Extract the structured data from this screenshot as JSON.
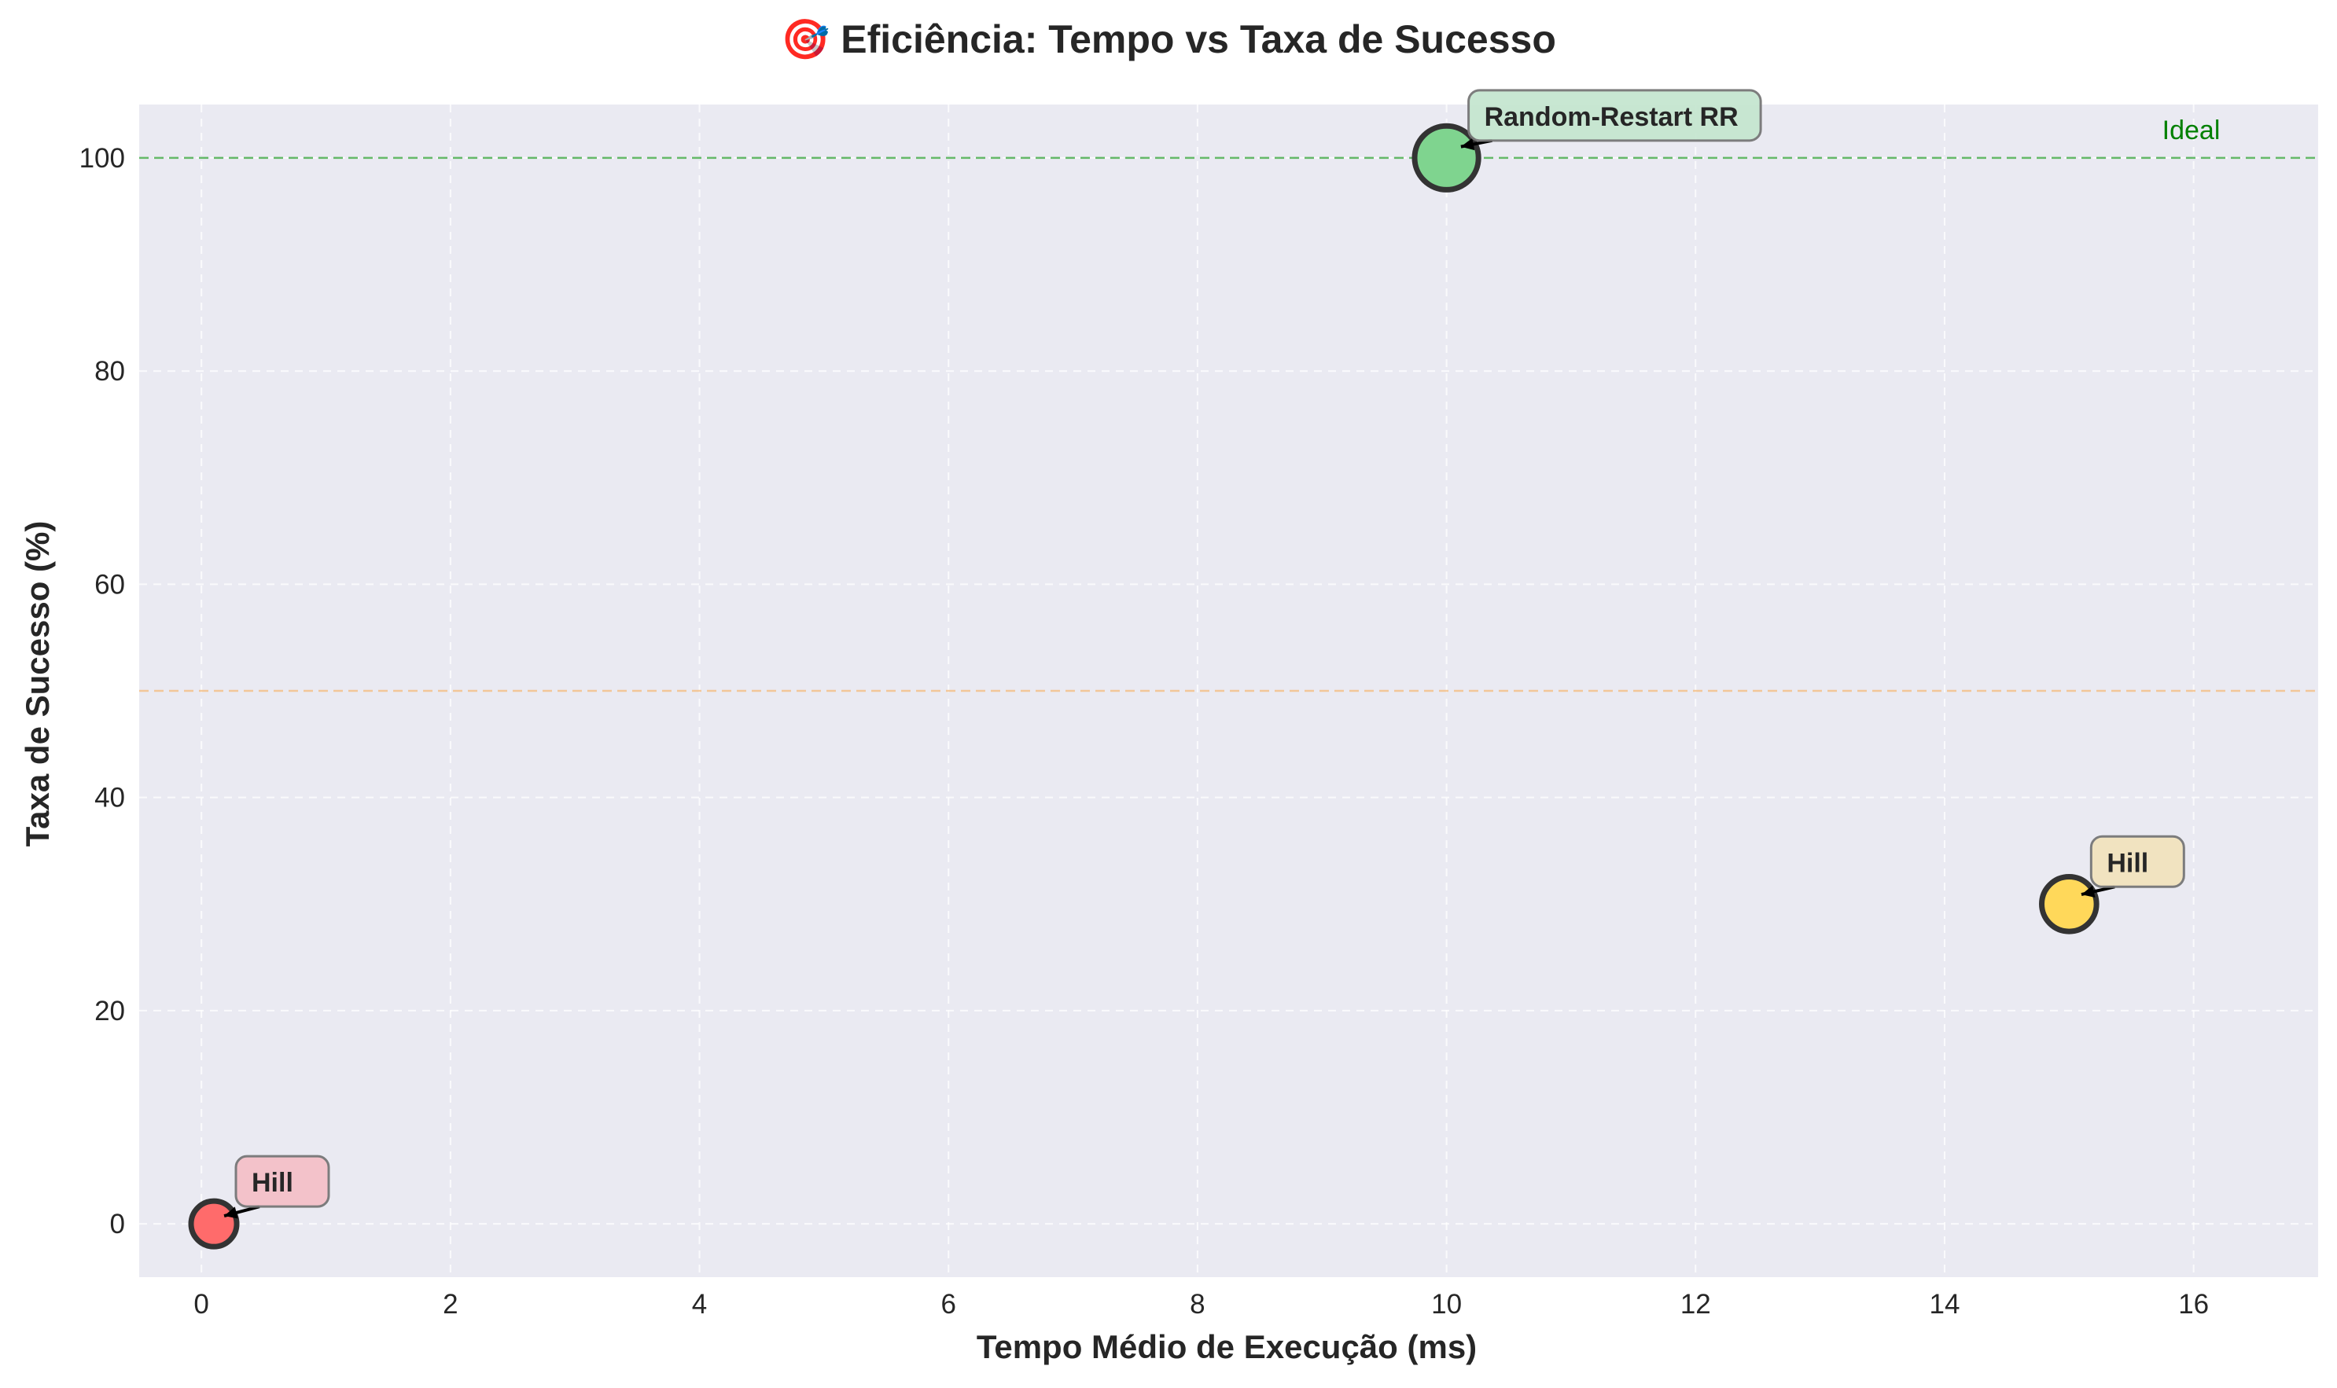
{
  "chart_data": {
    "type": "scatter",
    "title": "🎯 Eficiência: Tempo vs Taxa de Sucesso",
    "xlabel": "Tempo Médio de Execução (ms)",
    "ylabel": "Taxa de Sucesso (%)",
    "xlim": [
      -0.5,
      17
    ],
    "ylim": [
      -5,
      105
    ],
    "xticks": [
      0,
      2,
      4,
      6,
      8,
      10,
      12,
      14,
      16
    ],
    "yticks": [
      0,
      20,
      40,
      60,
      80,
      100
    ],
    "grid": true,
    "background": "#eaeaf2",
    "points": [
      {
        "label": "Hill",
        "x": 0.1,
        "y": 0,
        "color": "#ff6b6b",
        "label_bg": "#f4c0c8",
        "size": 1.0
      },
      {
        "label": "Random-Restart RR",
        "x": 10,
        "y": 100,
        "color": "#7fd48f",
        "label_bg": "#c6e6d0",
        "size": 1.4
      },
      {
        "label": "Hill",
        "x": 15,
        "y": 30,
        "color": "#ffd85a",
        "label_bg": "#f2e3be",
        "size": 1.2
      }
    ],
    "reference_lines": [
      {
        "y": 100,
        "label": "Ideal",
        "color": "#4caf50"
      },
      {
        "y": 50,
        "label": "",
        "color": "#f4c08a"
      }
    ]
  }
}
